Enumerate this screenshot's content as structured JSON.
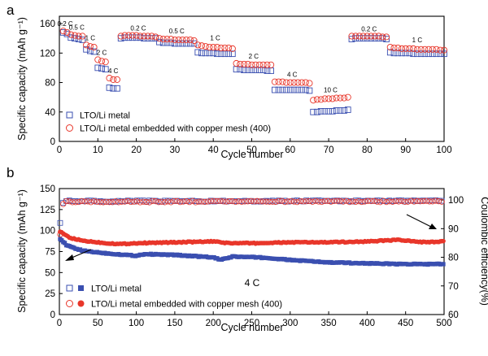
{
  "colors": {
    "lto": "#3a4fb0",
    "mesh": "#e8362a"
  },
  "chart_data": [
    {
      "id": "a",
      "type": "scatter",
      "panel_label": "a",
      "xlabel": "Cycle number",
      "ylabel": "Specific capacity (mAh g⁻¹)",
      "xlim": [
        0,
        100
      ],
      "ylim": [
        0,
        170
      ],
      "xticks": [
        0,
        10,
        20,
        30,
        40,
        50,
        60,
        70,
        80,
        90,
        100
      ],
      "yticks": [
        0,
        40,
        80,
        120,
        160
      ],
      "legend": {
        "position": "bottom-left"
      },
      "segments": [
        {
          "rate": "0.2 C",
          "start": 1,
          "end": 2,
          "lto": [
            148,
            146
          ],
          "mesh": [
            150,
            148
          ]
        },
        {
          "rate": "0.5 C",
          "start": 3,
          "end": 6,
          "lto": [
            141,
            140,
            139,
            138
          ],
          "mesh": [
            145,
            144,
            143,
            143
          ]
        },
        {
          "rate": "1 C",
          "start": 7,
          "end": 9,
          "lto": [
            125,
            123,
            122
          ],
          "mesh": [
            131,
            129,
            128
          ]
        },
        {
          "rate": "2 C",
          "start": 10,
          "end": 12,
          "lto": [
            100,
            99,
            98
          ],
          "mesh": [
            111,
            109,
            108
          ]
        },
        {
          "rate": "4 C",
          "start": 13,
          "end": 15,
          "lto": [
            73,
            72,
            72
          ],
          "mesh": [
            86,
            84,
            84
          ]
        },
        {
          "rate": "0.2 C",
          "start": 16,
          "end": 25,
          "lto": [
            140,
            141,
            141,
            141,
            141,
            141,
            140,
            140,
            140,
            140
          ],
          "mesh": [
            143,
            144,
            144,
            144,
            144,
            143,
            143,
            143,
            143,
            142
          ]
        },
        {
          "rate": "0.5 C",
          "start": 26,
          "end": 35,
          "lto": [
            135,
            134,
            134,
            134,
            133,
            133,
            133,
            133,
            133,
            133
          ],
          "mesh": [
            140,
            139,
            139,
            139,
            138,
            138,
            138,
            138,
            138,
            137
          ]
        },
        {
          "rate": "1 C",
          "start": 36,
          "end": 45,
          "lto": [
            121,
            120,
            120,
            120,
            120,
            119,
            119,
            119,
            119,
            119
          ],
          "mesh": [
            131,
            130,
            129,
            128,
            128,
            128,
            127,
            127,
            127,
            126
          ]
        },
        {
          "rate": "2 C",
          "start": 46,
          "end": 55,
          "lto": [
            98,
            98,
            97,
            97,
            97,
            97,
            97,
            97,
            96,
            96
          ],
          "mesh": [
            106,
            105,
            105,
            105,
            104,
            104,
            104,
            104,
            104,
            104
          ]
        },
        {
          "rate": "4 C",
          "start": 56,
          "end": 65,
          "lto": [
            70,
            70,
            70,
            70,
            70,
            70,
            70,
            70,
            70,
            69
          ],
          "mesh": [
            81,
            81,
            81,
            80,
            80,
            80,
            80,
            80,
            80,
            79
          ]
        },
        {
          "rate": "10 C",
          "start": 66,
          "end": 75,
          "lto": [
            40,
            40,
            41,
            41,
            41,
            41,
            42,
            42,
            42,
            43
          ],
          "mesh": [
            56,
            57,
            57,
            58,
            58,
            58,
            59,
            59,
            59,
            60
          ]
        },
        {
          "rate": "0.2 C",
          "start": 76,
          "end": 85,
          "lto": [
            139,
            140,
            140,
            140,
            140,
            140,
            140,
            140,
            140,
            139
          ],
          "mesh": [
            143,
            143,
            143,
            143,
            143,
            143,
            143,
            143,
            142,
            142
          ]
        },
        {
          "rate": "1 C",
          "start": 86,
          "end": 100,
          "lto": [
            121,
            120,
            120,
            120,
            120,
            120,
            119,
            119,
            119,
            119,
            119,
            119,
            119,
            119,
            119
          ],
          "mesh": [
            128,
            127,
            127,
            126,
            126,
            126,
            126,
            125,
            125,
            125,
            125,
            125,
            125,
            124,
            124
          ]
        }
      ],
      "series": [
        {
          "name": "LTO/Li metal",
          "marker": "open-square",
          "key": "lto"
        },
        {
          "name": "LTO/Li metal embedded with copper mesh (400)",
          "marker": "open-circle",
          "key": "mesh"
        }
      ]
    },
    {
      "id": "b",
      "type": "scatter",
      "panel_label": "b",
      "xlabel": "Cycle number",
      "ylabel": "Specific capacity (mAh g⁻¹)",
      "ylabel_right": "Coulombic efficiency(%)",
      "xlim": [
        0,
        500
      ],
      "ylim": [
        0,
        150
      ],
      "ylim_right": [
        60,
        104
      ],
      "xticks": [
        0,
        50,
        100,
        150,
        200,
        250,
        300,
        350,
        400,
        450,
        500
      ],
      "yticks": [
        0,
        25,
        50,
        75,
        100,
        125,
        150
      ],
      "yticks_right": [
        60,
        70,
        80,
        90,
        100
      ],
      "annotation": "4 C",
      "legend": {
        "position": "bottom-left"
      },
      "capacity_knots": {
        "lto": [
          [
            1,
            90
          ],
          [
            10,
            82
          ],
          [
            30,
            76
          ],
          [
            60,
            73
          ],
          [
            100,
            70
          ],
          [
            110,
            72
          ],
          [
            150,
            71
          ],
          [
            200,
            68
          ],
          [
            210,
            65
          ],
          [
            225,
            69
          ],
          [
            260,
            68
          ],
          [
            300,
            65
          ],
          [
            350,
            62
          ],
          [
            400,
            61
          ],
          [
            450,
            60
          ],
          [
            500,
            60
          ]
        ],
        "mesh": [
          [
            1,
            99
          ],
          [
            5,
            96
          ],
          [
            15,
            91
          ],
          [
            30,
            88
          ],
          [
            60,
            85
          ],
          [
            80,
            84
          ],
          [
            100,
            85
          ],
          [
            150,
            86
          ],
          [
            200,
            87
          ],
          [
            220,
            85
          ],
          [
            260,
            85
          ],
          [
            300,
            86
          ],
          [
            350,
            86
          ],
          [
            400,
            87
          ],
          [
            440,
            89
          ],
          [
            460,
            87
          ],
          [
            480,
            86
          ],
          [
            500,
            87
          ]
        ]
      },
      "efficiency_knots": {
        "lto": [
          [
            1,
            92
          ],
          [
            3,
            98
          ],
          [
            6,
            99.6
          ],
          [
            500,
            99.7
          ]
        ],
        "mesh": [
          [
            1,
            88
          ],
          [
            3,
            97
          ],
          [
            6,
            99.4
          ],
          [
            500,
            99.5
          ]
        ]
      },
      "series": [
        {
          "name": "LTO/Li metal",
          "marker": "open-square + filled-square",
          "key": "lto"
        },
        {
          "name": "LTO/Li metal embedded with copper mesh (400)",
          "marker": "open-circle + filled-circle",
          "key": "mesh"
        }
      ]
    }
  ]
}
